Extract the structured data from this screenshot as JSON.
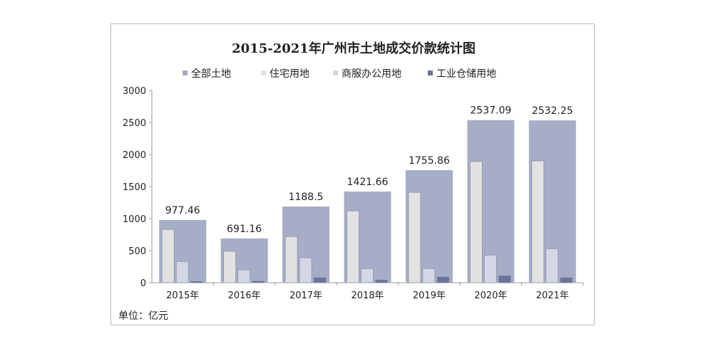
{
  "chart_data": {
    "type": "bar",
    "title": "2015-2021年广州市土地成交价款统计图",
    "unit_label": "单位：亿元",
    "categories": [
      "2015年",
      "2016年",
      "2017年",
      "2018年",
      "2019年",
      "2020年",
      "2021年"
    ],
    "series": [
      {
        "name": "全部土地",
        "color": "#a7adc6",
        "values": [
          977.46,
          691.16,
          1188.5,
          1421.66,
          1755.86,
          2537.09,
          2532.25
        ],
        "labels": [
          "977.46",
          "691.16",
          "1188.5",
          "1421.66",
          "1755.86",
          "2537.09",
          "2532.25"
        ]
      },
      {
        "name": "住宅用地",
        "color": "#e2e2e2",
        "values": [
          830,
          490,
          720,
          1120,
          1410,
          1890,
          1900
        ]
      },
      {
        "name": "商服办公用地",
        "color": "#d3d7e6",
        "values": [
          330,
          200,
          390,
          220,
          220,
          430,
          530
        ]
      },
      {
        "name": "工业仓储用地",
        "color": "#6b7499",
        "values": [
          20,
          25,
          80,
          45,
          90,
          110,
          80
        ]
      }
    ],
    "y_ticks": [
      "0",
      "500",
      "1000",
      "1500",
      "2000",
      "2500",
      "3000"
    ],
    "ylim": [
      0,
      3000
    ],
    "grid": false,
    "legend_position": "top"
  }
}
